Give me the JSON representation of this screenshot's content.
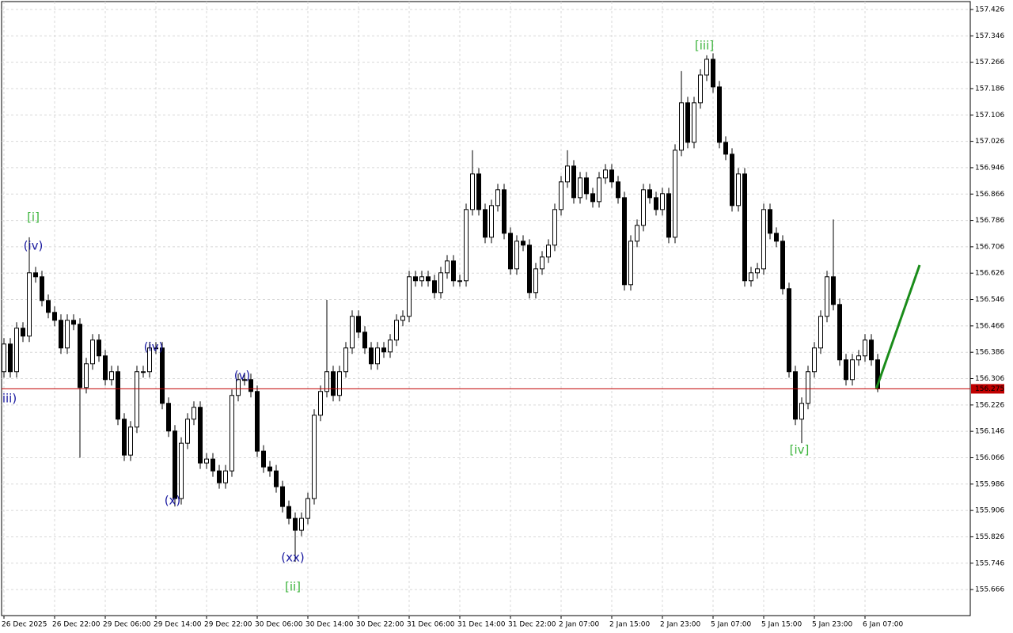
{
  "chart_data": {
    "type": "candlestick",
    "categories": [
      "26 Dec 2025",
      null,
      null,
      null,
      null,
      null,
      null,
      null,
      "26 Dec 22:00",
      null,
      null,
      null,
      null,
      null,
      null,
      null,
      "29 Dec 06:00",
      null,
      null,
      null,
      null,
      null,
      null,
      null,
      "29 Dec 14:00",
      null,
      null,
      null,
      null,
      null,
      null,
      null,
      "29 Dec 22:00",
      null,
      null,
      null,
      null,
      null,
      null,
      null,
      "30 Dec 06:00",
      null,
      null,
      null,
      null,
      null,
      null,
      null,
      "30 Dec 14:00",
      null,
      null,
      null,
      null,
      null,
      null,
      null,
      "30 Dec 22:00",
      null,
      null,
      null,
      null,
      null,
      null,
      null,
      "31 Dec 06:00",
      null,
      null,
      null,
      null,
      null,
      null,
      null,
      "31 Dec 14:00",
      null,
      null,
      null,
      null,
      null,
      null,
      null,
      "31 Dec 22:00",
      null,
      null,
      null,
      null,
      null,
      null,
      null,
      "2 Jan 07:00",
      null,
      null,
      null,
      null,
      null,
      null,
      null,
      "2 Jan 15:00",
      null,
      null,
      null,
      null,
      null,
      null,
      null,
      "2 Jan 23:00",
      null,
      null,
      null,
      null,
      null,
      null,
      null,
      "5 Jan 07:00",
      null,
      null,
      null,
      null,
      null,
      null,
      null,
      "5 Jan 15:00",
      null,
      null,
      null,
      null,
      null,
      null,
      null,
      "5 Jan 23:00",
      null,
      null,
      null,
      null,
      null,
      null,
      null,
      "6 Jan 07:00",
      null,
      null
    ],
    "open": [
      156.327,
      156.411,
      156.327,
      156.459,
      156.435,
      156.627,
      156.615,
      156.543,
      156.507,
      156.483,
      156.399,
      156.483,
      156.471,
      156.279,
      156.351,
      156.423,
      156.375,
      156.303,
      156.327,
      156.183,
      156.074,
      156.159,
      156.327,
      156.327,
      156.399,
      156.399,
      156.231,
      156.147,
      155.942,
      156.11,
      156.183,
      156.219,
      156.05,
      156.062,
      156.026,
      155.99,
      156.026,
      156.255,
      156.303,
      156.303,
      156.267,
      156.086,
      156.038,
      156.026,
      155.978,
      155.918,
      155.882,
      155.846,
      155.882,
      155.942,
      156.195,
      156.267,
      156.327,
      156.255,
      156.327,
      156.399,
      156.495,
      156.447,
      156.399,
      156.351,
      156.399,
      156.387,
      156.423,
      156.483,
      156.495,
      156.615,
      156.603,
      156.615,
      156.603,
      156.567,
      156.627,
      156.663,
      156.603,
      156.603,
      156.819,
      156.927,
      156.819,
      156.735,
      156.831,
      156.879,
      156.747,
      156.639,
      156.723,
      156.711,
      156.567,
      156.639,
      156.675,
      156.711,
      156.819,
      156.903,
      156.951,
      156.855,
      156.915,
      156.867,
      156.843,
      156.915,
      156.939,
      156.903,
      156.855,
      156.591,
      156.723,
      156.771,
      156.879,
      156.855,
      156.819,
      156.867,
      156.735,
      156.999,
      157.143,
      157.023,
      157.143,
      157.227,
      157.275,
      157.191,
      157.023,
      156.987,
      156.831,
      156.927,
      156.603,
      156.627,
      156.639,
      156.819,
      156.747,
      156.723,
      156.579,
      156.327,
      156.183,
      156.231,
      156.327,
      156.399,
      156.495,
      156.615,
      156.531,
      156.363,
      156.303,
      156.363,
      156.375,
      156.423,
      156.363
    ],
    "high": [
      156.429,
      156.429,
      156.477,
      156.477,
      156.735,
      156.645,
      156.633,
      156.561,
      156.525,
      156.501,
      156.501,
      156.501,
      156.489,
      156.369,
      156.441,
      156.441,
      156.393,
      156.345,
      156.345,
      156.201,
      156.177,
      156.345,
      156.345,
      156.417,
      156.417,
      156.417,
      156.249,
      156.165,
      156.128,
      156.201,
      156.237,
      156.237,
      156.08,
      156.08,
      156.044,
      156.044,
      156.273,
      156.321,
      156.321,
      156.321,
      156.285,
      156.104,
      156.056,
      156.044,
      155.996,
      155.936,
      155.9,
      155.9,
      155.96,
      156.213,
      156.285,
      156.545,
      156.345,
      156.345,
      156.417,
      156.513,
      156.513,
      156.465,
      156.417,
      156.417,
      156.417,
      156.441,
      156.501,
      156.513,
      156.633,
      156.633,
      156.633,
      156.633,
      156.621,
      156.645,
      156.681,
      156.681,
      156.621,
      156.837,
      156.999,
      156.945,
      156.837,
      156.849,
      156.897,
      156.897,
      156.765,
      156.741,
      156.741,
      156.729,
      156.657,
      156.693,
      156.729,
      156.837,
      156.921,
      156.999,
      156.969,
      156.933,
      156.933,
      156.885,
      156.933,
      156.957,
      156.957,
      156.921,
      156.873,
      156.741,
      156.789,
      156.897,
      156.897,
      156.873,
      156.885,
      156.885,
      157.017,
      157.239,
      157.161,
      157.161,
      157.245,
      157.287,
      157.293,
      157.209,
      157.041,
      157.005,
      156.945,
      156.945,
      156.645,
      156.657,
      156.837,
      156.837,
      156.765,
      156.741,
      156.597,
      156.345,
      156.249,
      156.345,
      156.417,
      156.513,
      156.633,
      156.789,
      156.549,
      156.381,
      156.381,
      156.393,
      156.441,
      156.441,
      156.381
    ],
    "low": [
      156.309,
      156.309,
      156.309,
      156.417,
      156.417,
      156.597,
      156.525,
      156.489,
      156.465,
      156.381,
      156.381,
      156.453,
      156.066,
      156.261,
      156.333,
      156.357,
      156.285,
      156.285,
      156.165,
      156.056,
      156.056,
      156.141,
      156.309,
      156.309,
      156.381,
      156.213,
      156.129,
      155.918,
      155.924,
      156.092,
      156.165,
      156.032,
      156.032,
      156.008,
      155.972,
      155.972,
      156.008,
      156.237,
      156.285,
      156.249,
      156.068,
      156.02,
      156.008,
      155.96,
      155.9,
      155.864,
      155.75,
      155.828,
      155.864,
      155.924,
      156.177,
      156.249,
      156.237,
      156.237,
      156.309,
      156.381,
      156.429,
      156.381,
      156.333,
      156.333,
      156.369,
      156.369,
      156.405,
      156.465,
      156.477,
      156.585,
      156.585,
      156.585,
      156.549,
      156.549,
      156.609,
      156.585,
      156.585,
      156.585,
      156.801,
      156.801,
      156.717,
      156.717,
      156.813,
      156.729,
      156.621,
      156.621,
      156.693,
      156.549,
      156.549,
      156.621,
      156.657,
      156.693,
      156.801,
      156.885,
      156.837,
      156.837,
      156.849,
      156.825,
      156.825,
      156.897,
      156.885,
      156.837,
      156.573,
      156.573,
      156.705,
      156.753,
      156.837,
      156.801,
      156.801,
      156.717,
      156.717,
      156.981,
      157.005,
      157.005,
      157.125,
      157.209,
      157.173,
      157.005,
      156.969,
      156.813,
      156.813,
      156.585,
      156.585,
      156.609,
      156.621,
      156.729,
      156.705,
      156.561,
      156.309,
      156.165,
      156.11,
      156.213,
      156.309,
      156.381,
      156.477,
      156.513,
      156.345,
      156.285,
      156.285,
      156.345,
      156.357,
      156.345,
      156.265
    ],
    "close": [
      156.411,
      156.327,
      156.459,
      156.435,
      156.627,
      156.615,
      156.543,
      156.507,
      156.483,
      156.399,
      156.483,
      156.471,
      156.279,
      156.351,
      156.423,
      156.375,
      156.303,
      156.327,
      156.183,
      156.074,
      156.159,
      156.327,
      156.327,
      156.399,
      156.399,
      156.231,
      156.147,
      155.942,
      156.11,
      156.183,
      156.219,
      156.05,
      156.062,
      156.026,
      155.99,
      156.026,
      156.255,
      156.303,
      156.303,
      156.267,
      156.086,
      156.038,
      156.026,
      155.978,
      155.918,
      155.882,
      155.846,
      155.882,
      155.942,
      156.195,
      156.267,
      156.327,
      156.255,
      156.327,
      156.399,
      156.495,
      156.447,
      156.399,
      156.351,
      156.399,
      156.387,
      156.423,
      156.483,
      156.495,
      156.615,
      156.603,
      156.615,
      156.603,
      156.567,
      156.627,
      156.663,
      156.603,
      156.603,
      156.819,
      156.927,
      156.819,
      156.735,
      156.831,
      156.879,
      156.747,
      156.639,
      156.723,
      156.711,
      156.567,
      156.639,
      156.675,
      156.711,
      156.819,
      156.903,
      156.951,
      156.855,
      156.915,
      156.867,
      156.843,
      156.915,
      156.939,
      156.903,
      156.855,
      156.591,
      156.723,
      156.771,
      156.879,
      156.855,
      156.819,
      156.867,
      156.735,
      156.999,
      157.143,
      157.023,
      157.143,
      157.227,
      157.275,
      157.191,
      157.023,
      156.987,
      156.831,
      156.927,
      156.603,
      156.627,
      156.639,
      156.819,
      156.747,
      156.723,
      156.579,
      156.327,
      156.183,
      156.231,
      156.327,
      156.399,
      156.495,
      156.615,
      156.531,
      156.363,
      156.303,
      156.363,
      156.375,
      156.423,
      156.363,
      156.275
    ],
    "colors": {
      "up": "#ffffff",
      "down": "#000000",
      "outline": "#000000"
    },
    "ylim": [
      155.587,
      157.45
    ],
    "yticks": [
      155.666,
      155.746,
      155.826,
      155.906,
      155.986,
      156.066,
      156.146,
      156.226,
      156.306,
      156.386,
      156.466,
      156.546,
      156.626,
      156.706,
      156.786,
      156.866,
      156.946,
      157.026,
      157.106,
      157.186,
      157.266,
      157.346,
      157.426
    ],
    "grid": true,
    "current_price": 156.275,
    "current_price_color": "#c00000",
    "annotations": [
      "[i]",
      "(iv)",
      "iii)",
      "(iv)",
      "(x)",
      "(v)",
      "(xx)",
      "[ii]",
      "[iii]",
      "[iv]"
    ]
  }
}
